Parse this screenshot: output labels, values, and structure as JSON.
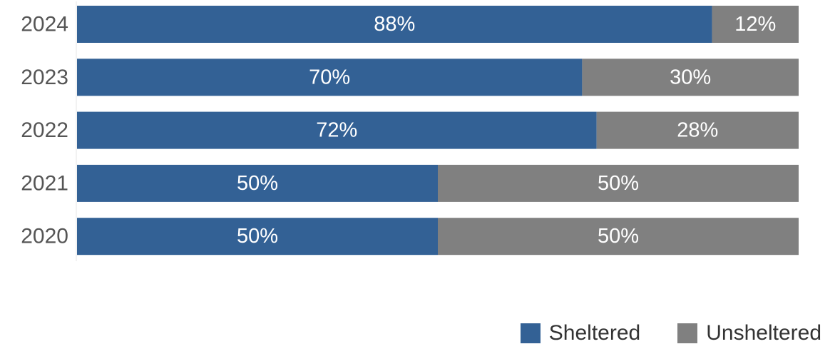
{
  "chart_data": {
    "type": "bar",
    "orientation": "horizontal",
    "stacked": true,
    "categories": [
      "2024",
      "2023",
      "2022",
      "2021",
      "2020"
    ],
    "series": [
      {
        "name": "Sheltered",
        "values": [
          88,
          70,
          72,
          50,
          50
        ],
        "labels": [
          "88%",
          "70%",
          "72%",
          "50%",
          "50%"
        ],
        "color": "#336195"
      },
      {
        "name": "Unsheltered",
        "values": [
          12,
          30,
          28,
          50,
          50
        ],
        "labels": [
          "12%",
          "30%",
          "28%",
          "50%",
          "50%"
        ],
        "color": "#808080"
      }
    ],
    "xlim": [
      0,
      100
    ],
    "grid": false,
    "legend_position": "bottom-right"
  }
}
